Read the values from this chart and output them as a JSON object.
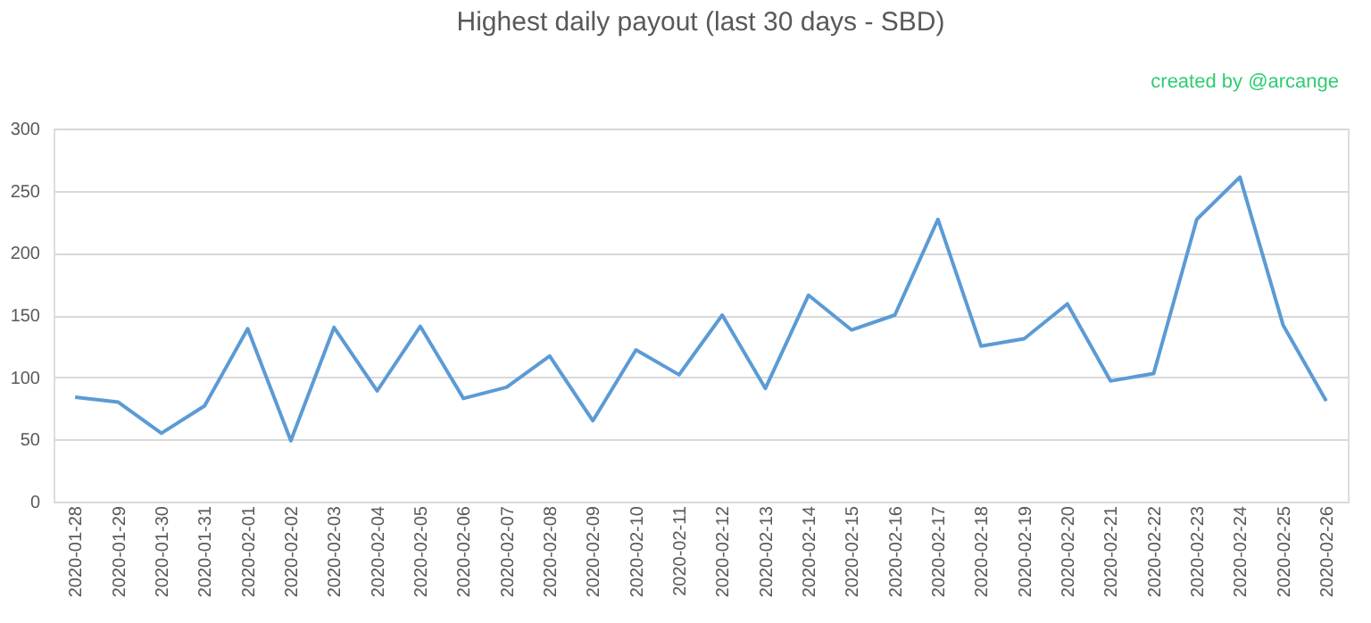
{
  "chart_data": {
    "type": "line",
    "title": "Highest daily payout (last 30 days - SBD)",
    "annotations": [
      "created by @arcange"
    ],
    "categories": [
      "2020-01-28",
      "2020-01-29",
      "2020-01-30",
      "2020-01-31",
      "2020-02-01",
      "2020-02-02",
      "2020-02-03",
      "2020-02-04",
      "2020-02-05",
      "2020-02-06",
      "2020-02-07",
      "2020-02-08",
      "2020-02-09",
      "2020-02-10",
      "2020-02-11",
      "2020-02-12",
      "2020-02-13",
      "2020-02-14",
      "2020-02-15",
      "2020-02-16",
      "2020-02-17",
      "2020-02-18",
      "2020-02-19",
      "2020-02-20",
      "2020-02-21",
      "2020-02-22",
      "2020-02-23",
      "2020-02-24",
      "2020-02-25",
      "2020-02-26"
    ],
    "series": [
      {
        "color": "#5b9bd5",
        "values": [
          84,
          80,
          55,
          77,
          139,
          49,
          140,
          89,
          141,
          83,
          92,
          117,
          65,
          122,
          102,
          150,
          91,
          166,
          138,
          150,
          227,
          125,
          131,
          159,
          97,
          103,
          227,
          261,
          142,
          81
        ]
      }
    ],
    "ylim": [
      0,
      300
    ],
    "yticks": [
      0,
      50,
      100,
      150,
      200,
      250,
      300
    ],
    "grid": "y",
    "legend": false,
    "marker": "none",
    "line_style": "solid"
  }
}
